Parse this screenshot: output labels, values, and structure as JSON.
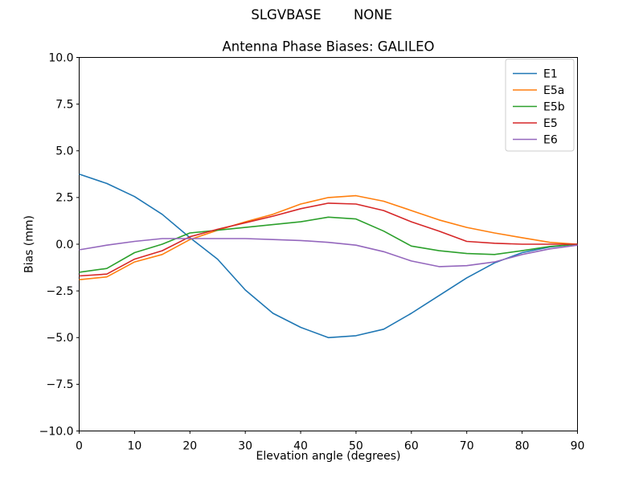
{
  "chart_data": {
    "type": "line",
    "suptitle_left": "SLGVBASE",
    "suptitle_right": "NONE",
    "title": "Antenna Phase Biases: GALILEO",
    "xlabel": "Elevation angle (degrees)",
    "ylabel": "Bias (mm)",
    "xlim": [
      0,
      90
    ],
    "ylim": [
      -10,
      10
    ],
    "grid": false,
    "legend_position": "upper right",
    "background": "#ffffff",
    "axis_color": "#000000",
    "legend_border_color": "#cccccc",
    "x_ticks": [
      {
        "v": 0,
        "label": "0"
      },
      {
        "v": 10,
        "label": "10"
      },
      {
        "v": 20,
        "label": "20"
      },
      {
        "v": 30,
        "label": "30"
      },
      {
        "v": 40,
        "label": "40"
      },
      {
        "v": 50,
        "label": "50"
      },
      {
        "v": 60,
        "label": "60"
      },
      {
        "v": 70,
        "label": "70"
      },
      {
        "v": 80,
        "label": "80"
      },
      {
        "v": 90,
        "label": "90"
      }
    ],
    "y_ticks": [
      {
        "v": 10,
        "label": "10.0"
      },
      {
        "v": 7.5,
        "label": "7.5"
      },
      {
        "v": 5,
        "label": "5.0"
      },
      {
        "v": 2.5,
        "label": "2.5"
      },
      {
        "v": 0,
        "label": "0.0"
      },
      {
        "v": -2.5,
        "label": "−2.5"
      },
      {
        "v": -5,
        "label": "−5.0"
      },
      {
        "v": -7.5,
        "label": "−7.5"
      },
      {
        "v": -10,
        "label": "−10.0"
      }
    ],
    "x": [
      0,
      5,
      10,
      15,
      20,
      25,
      30,
      35,
      40,
      45,
      50,
      55,
      60,
      65,
      70,
      75,
      80,
      85,
      90
    ],
    "series": [
      {
        "name": "E1",
        "color": "#1f77b4",
        "values": [
          3.75,
          3.25,
          2.55,
          1.6,
          0.35,
          -0.8,
          -2.45,
          -3.7,
          -4.45,
          -5.0,
          -4.9,
          -4.55,
          -3.7,
          -2.75,
          -1.8,
          -1.0,
          -0.45,
          -0.15,
          0.0
        ]
      },
      {
        "name": "E5a",
        "color": "#ff7f0e",
        "values": [
          -1.9,
          -1.75,
          -0.95,
          -0.55,
          0.25,
          0.75,
          1.2,
          1.6,
          2.15,
          2.5,
          2.6,
          2.3,
          1.8,
          1.3,
          0.9,
          0.6,
          0.35,
          0.1,
          0.0
        ]
      },
      {
        "name": "E5b",
        "color": "#2ca02c",
        "values": [
          -1.5,
          -1.3,
          -0.45,
          0.0,
          0.6,
          0.75,
          0.9,
          1.05,
          1.2,
          1.45,
          1.35,
          0.7,
          -0.1,
          -0.35,
          -0.5,
          -0.55,
          -0.35,
          -0.12,
          0.0
        ]
      },
      {
        "name": "E5",
        "color": "#d62728",
        "values": [
          -1.7,
          -1.6,
          -0.8,
          -0.35,
          0.4,
          0.8,
          1.15,
          1.5,
          1.9,
          2.2,
          2.15,
          1.8,
          1.2,
          0.7,
          0.15,
          0.05,
          0.0,
          0.0,
          0.0
        ]
      },
      {
        "name": "E6",
        "color": "#9467bd",
        "values": [
          -0.3,
          -0.05,
          0.15,
          0.3,
          0.3,
          0.3,
          0.3,
          0.25,
          0.2,
          0.1,
          -0.05,
          -0.4,
          -0.9,
          -1.2,
          -1.15,
          -0.95,
          -0.55,
          -0.25,
          -0.05
        ]
      }
    ]
  }
}
